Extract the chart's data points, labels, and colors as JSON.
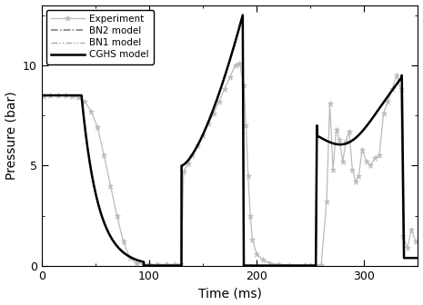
{
  "title": "",
  "xlabel": "Time (ms)",
  "ylabel": "Pressure (bar)",
  "xlim": [
    0,
    350
  ],
  "ylim": [
    0,
    13
  ],
  "yticks": [
    0,
    5,
    10
  ],
  "xticks": [
    0,
    100,
    200,
    300
  ],
  "background_color": "#ffffff",
  "legend_labels": [
    "Experiment",
    "BN2 model",
    "BN1 model",
    "CGHS model"
  ],
  "experiment_color": "#bbbbbb",
  "cghs_color": "#000000",
  "bn_color": "#777777",
  "legend_loc": "upper left",
  "legend_fontsize": 7.5,
  "xlabel_fontsize": 10,
  "ylabel_fontsize": 10,
  "tick_fontsize": 9
}
